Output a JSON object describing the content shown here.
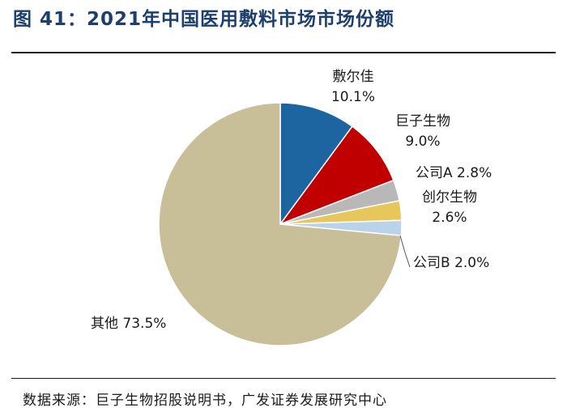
{
  "title": "图 41：2021年中国医用敷料市场市场份额",
  "source": "数据来源：巨子生物招股说明书，广发证券发展研究中心",
  "chart_data": {
    "type": "pie",
    "start": "12 o'clock, clockwise",
    "slices": [
      {
        "name": "敷尔佳",
        "value": 10.1,
        "value_label": "10.1%",
        "color": "#1c65a0"
      },
      {
        "name": "巨子生物",
        "value": 9.0,
        "value_label": "9.0%",
        "color": "#c00000"
      },
      {
        "name": "公司A",
        "value": 2.8,
        "value_label": "2.8%",
        "color": "#b8b8b8"
      },
      {
        "name": "创尔生物",
        "value": 2.6,
        "value_label": "2.6%",
        "color": "#e7c65b"
      },
      {
        "name": "公司B",
        "value": 2.0,
        "value_label": "2.0%",
        "color": "#b9d3ea"
      },
      {
        "name": "其他",
        "value": 73.5,
        "value_label": "73.5%",
        "color": "#c8be98"
      }
    ]
  }
}
